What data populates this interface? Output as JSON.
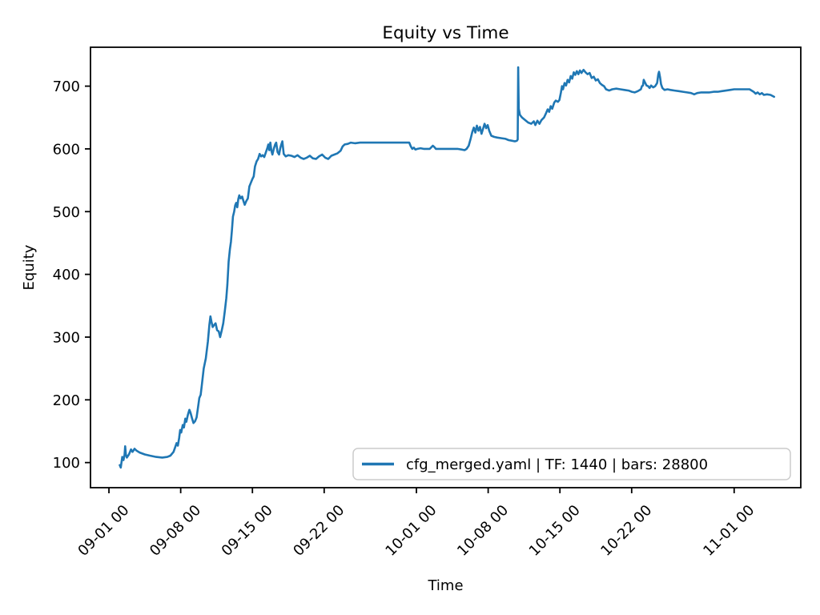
{
  "figure": {
    "background": "#ffffff",
    "text_color": "#000000",
    "spine_color": "#000000",
    "legend": {
      "label": "cfg_merged.yaml | TF: 1440 | bars: 28800",
      "position": "lower right",
      "border_color": "#cccccc"
    }
  },
  "chart_data": {
    "type": "line",
    "title": "Equity vs Time",
    "xlabel": "Time",
    "ylabel": "Equity",
    "grid": false,
    "legend_position": "lower right",
    "x_unit": "days since 09-01 00:00 tick",
    "xlim_days": [
      -1.8,
      67.5
    ],
    "ylim": [
      60,
      762
    ],
    "x_ticks": [
      {
        "label": "09-01 00",
        "day": 0
      },
      {
        "label": "09-08 00",
        "day": 7
      },
      {
        "label": "09-15 00",
        "day": 14
      },
      {
        "label": "09-22 00",
        "day": 21
      },
      {
        "label": "10-01 00",
        "day": 30
      },
      {
        "label": "10-08 00",
        "day": 37
      },
      {
        "label": "10-15 00",
        "day": 44
      },
      {
        "label": "10-22 00",
        "day": 51
      },
      {
        "label": "11-01 00",
        "day": 61
      }
    ],
    "y_ticks": [
      100,
      200,
      300,
      400,
      500,
      600,
      700
    ],
    "series": [
      {
        "name": "cfg_merged.yaml | TF: 1440 | bars: 28800",
        "color": "#1f77b4",
        "points": [
          [
            1.05,
            96
          ],
          [
            1.15,
            92
          ],
          [
            1.3,
            109
          ],
          [
            1.42,
            104
          ],
          [
            1.52,
            112
          ],
          [
            1.58,
            126
          ],
          [
            1.65,
            113
          ],
          [
            1.75,
            108
          ],
          [
            1.95,
            113
          ],
          [
            2.15,
            121
          ],
          [
            2.3,
            117
          ],
          [
            2.5,
            122
          ],
          [
            2.7,
            119
          ],
          [
            3.0,
            116
          ],
          [
            3.5,
            113
          ],
          [
            4.0,
            111
          ],
          [
            4.6,
            109
          ],
          [
            5.2,
            108
          ],
          [
            5.7,
            109
          ],
          [
            6.0,
            111
          ],
          [
            6.3,
            117
          ],
          [
            6.45,
            124
          ],
          [
            6.6,
            131
          ],
          [
            6.72,
            127
          ],
          [
            6.85,
            139
          ],
          [
            6.95,
            152
          ],
          [
            7.05,
            148
          ],
          [
            7.2,
            160
          ],
          [
            7.32,
            156
          ],
          [
            7.45,
            170
          ],
          [
            7.55,
            165
          ],
          [
            7.7,
            176
          ],
          [
            7.85,
            184
          ],
          [
            7.95,
            180
          ],
          [
            8.1,
            171
          ],
          [
            8.25,
            163
          ],
          [
            8.4,
            166
          ],
          [
            8.55,
            172
          ],
          [
            8.7,
            189
          ],
          [
            8.82,
            203
          ],
          [
            8.95,
            208
          ],
          [
            9.05,
            222
          ],
          [
            9.25,
            250
          ],
          [
            9.45,
            266
          ],
          [
            9.65,
            293
          ],
          [
            9.8,
            320
          ],
          [
            9.9,
            333
          ],
          [
            10.0,
            325
          ],
          [
            10.12,
            316
          ],
          [
            10.25,
            319
          ],
          [
            10.4,
            322
          ],
          [
            10.55,
            311
          ],
          [
            10.72,
            309
          ],
          [
            10.85,
            300
          ],
          [
            11.0,
            310
          ],
          [
            11.15,
            322
          ],
          [
            11.3,
            341
          ],
          [
            11.45,
            362
          ],
          [
            11.55,
            383
          ],
          [
            11.68,
            420
          ],
          [
            11.8,
            440
          ],
          [
            11.9,
            452
          ],
          [
            12.0,
            470
          ],
          [
            12.1,
            492
          ],
          [
            12.22,
            500
          ],
          [
            12.32,
            510
          ],
          [
            12.42,
            514
          ],
          [
            12.52,
            507
          ],
          [
            12.62,
            520
          ],
          [
            12.72,
            526
          ],
          [
            12.85,
            521
          ],
          [
            13.0,
            524
          ],
          [
            13.12,
            517
          ],
          [
            13.25,
            511
          ],
          [
            13.4,
            517
          ],
          [
            13.55,
            521
          ],
          [
            13.7,
            540
          ],
          [
            13.85,
            546
          ],
          [
            14.0,
            552
          ],
          [
            14.12,
            556
          ],
          [
            14.25,
            572
          ],
          [
            14.4,
            580
          ],
          [
            14.55,
            584
          ],
          [
            14.7,
            592
          ],
          [
            14.85,
            588
          ],
          [
            15.0,
            590
          ],
          [
            15.15,
            587
          ],
          [
            15.3,
            594
          ],
          [
            15.45,
            601
          ],
          [
            15.55,
            607
          ],
          [
            15.65,
            598
          ],
          [
            15.75,
            610
          ],
          [
            15.85,
            597
          ],
          [
            15.95,
            591
          ],
          [
            16.1,
            601
          ],
          [
            16.22,
            607
          ],
          [
            16.32,
            610
          ],
          [
            16.45,
            595
          ],
          [
            16.6,
            591
          ],
          [
            16.72,
            601
          ],
          [
            16.82,
            607
          ],
          [
            16.92,
            612
          ],
          [
            17.05,
            592
          ],
          [
            17.25,
            588
          ],
          [
            17.5,
            590
          ],
          [
            17.8,
            589
          ],
          [
            18.1,
            587
          ],
          [
            18.4,
            590
          ],
          [
            18.7,
            586
          ],
          [
            19.0,
            584
          ],
          [
            19.3,
            586
          ],
          [
            19.6,
            589
          ],
          [
            19.9,
            585
          ],
          [
            20.2,
            584
          ],
          [
            20.5,
            588
          ],
          [
            20.8,
            591
          ],
          [
            21.1,
            586
          ],
          [
            21.4,
            584
          ],
          [
            21.7,
            589
          ],
          [
            22.0,
            591
          ],
          [
            22.3,
            593
          ],
          [
            22.6,
            597
          ],
          [
            22.8,
            604
          ],
          [
            23.0,
            607
          ],
          [
            23.3,
            608
          ],
          [
            23.6,
            610
          ],
          [
            24.0,
            609
          ],
          [
            24.5,
            610
          ],
          [
            25.0,
            610
          ],
          [
            25.5,
            610
          ],
          [
            26.0,
            610
          ],
          [
            26.5,
            610
          ],
          [
            27.0,
            610
          ],
          [
            27.5,
            610
          ],
          [
            28.0,
            610
          ],
          [
            28.5,
            610
          ],
          [
            29.0,
            610
          ],
          [
            29.3,
            610
          ],
          [
            29.45,
            604
          ],
          [
            29.6,
            600
          ],
          [
            29.75,
            602
          ],
          [
            29.9,
            599
          ],
          [
            30.1,
            600
          ],
          [
            30.4,
            601
          ],
          [
            30.7,
            600
          ],
          [
            31.0,
            600
          ],
          [
            31.3,
            600
          ],
          [
            31.6,
            605
          ],
          [
            31.75,
            603
          ],
          [
            31.9,
            600
          ],
          [
            32.2,
            600
          ],
          [
            32.6,
            600
          ],
          [
            33.0,
            600
          ],
          [
            33.5,
            600
          ],
          [
            34.0,
            600
          ],
          [
            34.4,
            599
          ],
          [
            34.7,
            598
          ],
          [
            34.9,
            600
          ],
          [
            35.1,
            605
          ],
          [
            35.3,
            617
          ],
          [
            35.45,
            627
          ],
          [
            35.6,
            634
          ],
          [
            35.75,
            626
          ],
          [
            35.9,
            637
          ],
          [
            36.05,
            629
          ],
          [
            36.2,
            635
          ],
          [
            36.35,
            624
          ],
          [
            36.5,
            632
          ],
          [
            36.65,
            640
          ],
          [
            36.8,
            633
          ],
          [
            36.95,
            638
          ],
          [
            37.1,
            629
          ],
          [
            37.3,
            621
          ],
          [
            37.6,
            619
          ],
          [
            37.9,
            618
          ],
          [
            38.3,
            617
          ],
          [
            38.7,
            616
          ],
          [
            39.0,
            614
          ],
          [
            39.3,
            613
          ],
          [
            39.6,
            612
          ],
          [
            39.8,
            613
          ],
          [
            39.88,
            615
          ],
          [
            39.93,
            730
          ],
          [
            39.98,
            664
          ],
          [
            40.1,
            654
          ],
          [
            40.3,
            650
          ],
          [
            40.6,
            646
          ],
          [
            40.9,
            642
          ],
          [
            41.2,
            640
          ],
          [
            41.45,
            644
          ],
          [
            41.6,
            638
          ],
          [
            41.8,
            645
          ],
          [
            42.0,
            640
          ],
          [
            42.2,
            646
          ],
          [
            42.45,
            650
          ],
          [
            42.65,
            657
          ],
          [
            42.8,
            663
          ],
          [
            42.95,
            659
          ],
          [
            43.1,
            668
          ],
          [
            43.25,
            664
          ],
          [
            43.45,
            674
          ],
          [
            43.6,
            677
          ],
          [
            43.8,
            675
          ],
          [
            43.95,
            678
          ],
          [
            44.1,
            690
          ],
          [
            44.2,
            700
          ],
          [
            44.3,
            695
          ],
          [
            44.45,
            705
          ],
          [
            44.6,
            701
          ],
          [
            44.75,
            710
          ],
          [
            44.9,
            706
          ],
          [
            45.05,
            716
          ],
          [
            45.2,
            712
          ],
          [
            45.35,
            722
          ],
          [
            45.5,
            718
          ],
          [
            45.65,
            724
          ],
          [
            45.8,
            719
          ],
          [
            45.95,
            725
          ],
          [
            46.1,
            721
          ],
          [
            46.3,
            726
          ],
          [
            46.5,
            722
          ],
          [
            46.7,
            719
          ],
          [
            46.9,
            721
          ],
          [
            47.1,
            713
          ],
          [
            47.3,
            715
          ],
          [
            47.5,
            709
          ],
          [
            47.7,
            711
          ],
          [
            47.9,
            705
          ],
          [
            48.1,
            702
          ],
          [
            48.3,
            700
          ],
          [
            48.5,
            695
          ],
          [
            48.8,
            693
          ],
          [
            49.1,
            695
          ],
          [
            49.5,
            696
          ],
          [
            49.9,
            695
          ],
          [
            50.3,
            694
          ],
          [
            50.7,
            693
          ],
          [
            51.0,
            691
          ],
          [
            51.3,
            690
          ],
          [
            51.6,
            692
          ],
          [
            51.9,
            695
          ],
          [
            52.0,
            700
          ],
          [
            52.1,
            701
          ],
          [
            52.18,
            710
          ],
          [
            52.3,
            706
          ],
          [
            52.45,
            701
          ],
          [
            52.6,
            700
          ],
          [
            52.75,
            697
          ],
          [
            52.9,
            701
          ],
          [
            53.1,
            698
          ],
          [
            53.3,
            700
          ],
          [
            53.48,
            705
          ],
          [
            53.6,
            719
          ],
          [
            53.67,
            723
          ],
          [
            53.77,
            714
          ],
          [
            53.87,
            703
          ],
          [
            54.0,
            697
          ],
          [
            54.2,
            694
          ],
          [
            54.5,
            695
          ],
          [
            54.8,
            694
          ],
          [
            55.2,
            693
          ],
          [
            55.6,
            692
          ],
          [
            56.0,
            691
          ],
          [
            56.4,
            690
          ],
          [
            56.8,
            689
          ],
          [
            57.1,
            687
          ],
          [
            57.4,
            689
          ],
          [
            57.8,
            690
          ],
          [
            58.2,
            690
          ],
          [
            58.6,
            690
          ],
          [
            59.0,
            691
          ],
          [
            59.4,
            691
          ],
          [
            59.8,
            692
          ],
          [
            60.2,
            693
          ],
          [
            60.6,
            694
          ],
          [
            61.0,
            695
          ],
          [
            61.5,
            695
          ],
          [
            62.0,
            695
          ],
          [
            62.5,
            695
          ],
          [
            62.9,
            691
          ],
          [
            63.1,
            688
          ],
          [
            63.3,
            690
          ],
          [
            63.5,
            687
          ],
          [
            63.7,
            689
          ],
          [
            63.9,
            686
          ],
          [
            64.2,
            687
          ],
          [
            64.55,
            686
          ],
          [
            64.9,
            683
          ]
        ]
      }
    ]
  }
}
